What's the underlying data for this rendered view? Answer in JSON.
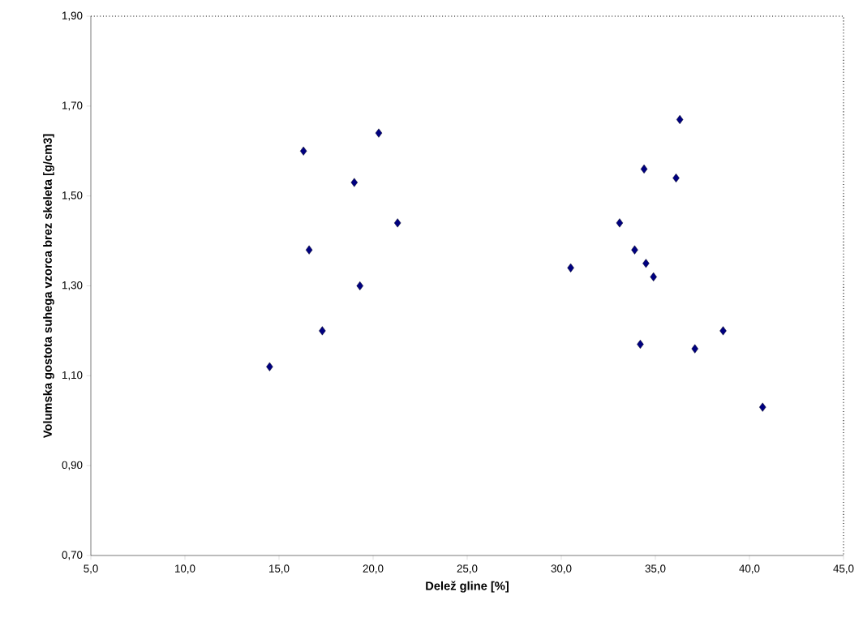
{
  "chart_data": {
    "type": "scatter",
    "xlabel": "Delež gline [%]",
    "ylabel": "Volumska gostota suhega vzorca brez skeleta [g/cm3]",
    "x": [
      20.3,
      16.3,
      19.0,
      21.3,
      16.6,
      19.3,
      17.3,
      14.5,
      36.3,
      34.4,
      36.1,
      33.1,
      33.9,
      30.5,
      34.5,
      34.9,
      38.6,
      34.2,
      37.1,
      40.7
    ],
    "series": [
      {
        "color": "#000080",
        "values": [
          1.64,
          1.6,
          1.53,
          1.44,
          1.38,
          1.3,
          1.2,
          1.12,
          1.67,
          1.56,
          1.54,
          1.44,
          1.38,
          1.34,
          1.35,
          1.32,
          1.2,
          1.17,
          1.16,
          1.03
        ]
      }
    ],
    "xlim": [
      5,
      45
    ],
    "ylim": [
      0.7,
      1.9
    ],
    "xticks": [
      {
        "value": 5,
        "label": "5,0"
      },
      {
        "value": 10,
        "label": "10,0"
      },
      {
        "value": 15,
        "label": "15,0"
      },
      {
        "value": 20,
        "label": "20,0"
      },
      {
        "value": 25,
        "label": "25,0"
      },
      {
        "value": 30,
        "label": "30,0"
      },
      {
        "value": 35,
        "label": "35,0"
      },
      {
        "value": 40,
        "label": "40,0"
      },
      {
        "value": 45,
        "label": "45,0"
      }
    ],
    "yticks": [
      {
        "value": 0.7,
        "label": "0,70"
      },
      {
        "value": 0.9,
        "label": "0,90"
      },
      {
        "value": 1.1,
        "label": "1,10"
      },
      {
        "value": 1.3,
        "label": "1,30"
      },
      {
        "value": 1.5,
        "label": "1,50"
      },
      {
        "value": 1.7,
        "label": "1,70"
      },
      {
        "value": 1.9,
        "label": "1,90"
      }
    ],
    "grid": false,
    "marker": "diamond"
  }
}
